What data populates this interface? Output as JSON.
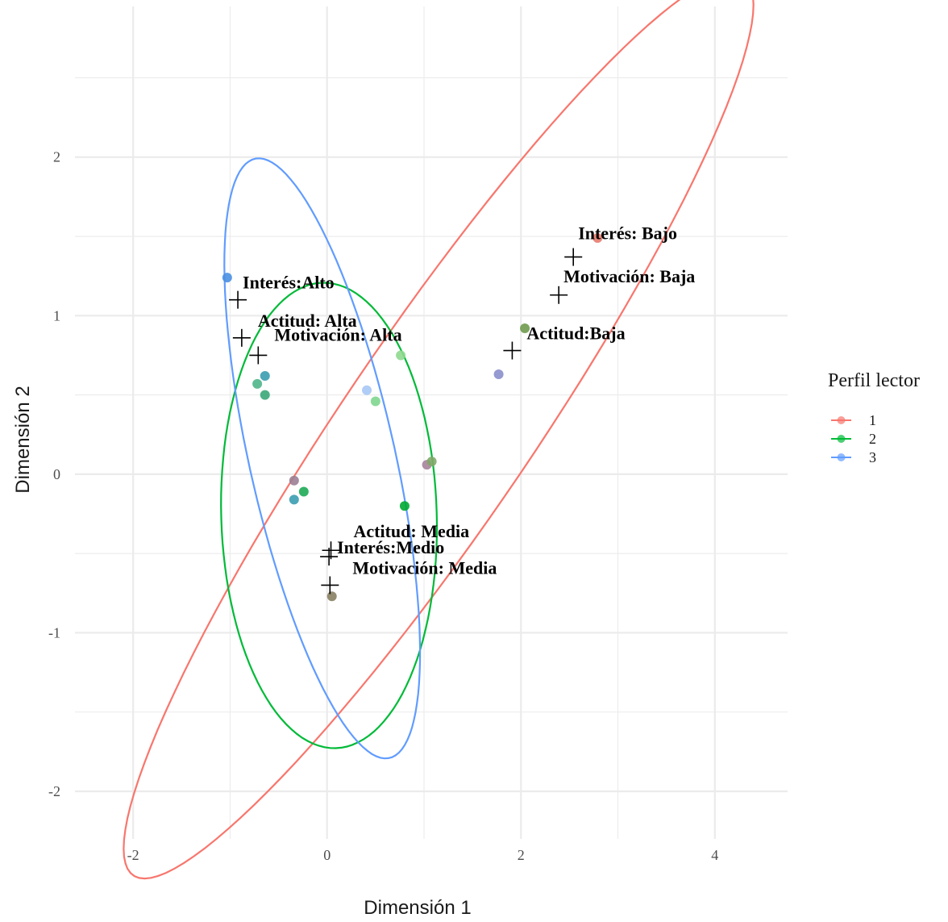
{
  "chart_data": {
    "type": "scatter",
    "xlabel": "Dimensión 1",
    "ylabel": "Dimensión  2",
    "xlim": [
      -2.6,
      4.75
    ],
    "ylim": [
      -2.3,
      2.95
    ],
    "x_ticks": [
      -2,
      0,
      2,
      4
    ],
    "y_ticks": [
      -2,
      -1,
      0,
      1,
      2
    ],
    "grid": true,
    "legend": {
      "title": "Perfil lector",
      "position": "right",
      "entries": [
        {
          "label": "1",
          "color": "#F8766D"
        },
        {
          "label": "2",
          "color": "#00BA38"
        },
        {
          "label": "3",
          "color": "#619CFF"
        }
      ]
    },
    "points": [
      {
        "x": -1.03,
        "y": 1.24,
        "color": "#4A90E2"
      },
      {
        "x": -0.72,
        "y": 0.57,
        "color": "#4FB58A"
      },
      {
        "x": -0.64,
        "y": 0.62,
        "color": "#3A9DB0"
      },
      {
        "x": -0.64,
        "y": 0.5,
        "color": "#3AA878"
      },
      {
        "x": 0.41,
        "y": 0.53,
        "color": "#A6C8F5"
      },
      {
        "x": 0.5,
        "y": 0.46,
        "color": "#7FD68F"
      },
      {
        "x": 0.76,
        "y": 0.75,
        "color": "#8FD98F"
      },
      {
        "x": 1.03,
        "y": 0.06,
        "color": "#A7849C"
      },
      {
        "x": 1.08,
        "y": 0.08,
        "color": "#7FA868"
      },
      {
        "x": -0.34,
        "y": -0.04,
        "color": "#9B7F94"
      },
      {
        "x": -0.34,
        "y": -0.16,
        "color": "#3A9DB0"
      },
      {
        "x": -0.24,
        "y": -0.11,
        "color": "#1EAA55"
      },
      {
        "x": 0.8,
        "y": -0.2,
        "color": "#00AA33"
      },
      {
        "x": 0.05,
        "y": -0.77,
        "color": "#888060"
      },
      {
        "x": 1.77,
        "y": 0.63,
        "color": "#8A8FCC"
      },
      {
        "x": 2.04,
        "y": 0.92,
        "color": "#6E9A4E"
      },
      {
        "x": 2.79,
        "y": 1.49,
        "color": "#E77B6E"
      }
    ],
    "categories": [
      {
        "label": "Interés: Bajo",
        "x": 2.54,
        "y": 1.37
      },
      {
        "label": "Motivación: Baja",
        "x": 2.39,
        "y": 1.13
      },
      {
        "label": "Actitud:Baja",
        "x": 1.91,
        "y": 0.78
      },
      {
        "label": "Interés:Alto",
        "x": -0.92,
        "y": 1.1
      },
      {
        "label": "Actitud: Alta",
        "x": -0.88,
        "y": 0.86
      },
      {
        "label": "Motivación: Alta",
        "x": -0.71,
        "y": 0.75
      },
      {
        "label": "Actitud: Media",
        "x": 0.04,
        "y": -0.48
      },
      {
        "label": "Interés:Medio",
        "x": 0.02,
        "y": -0.52
      },
      {
        "label": "Motivación: Media",
        "x": 0.03,
        "y": -0.7
      }
    ],
    "ellipses": [
      {
        "group": "1",
        "color": "#F8766D",
        "cx": 1.15,
        "cy": 0.3,
        "a": 4.25,
        "b": 0.78,
        "angle_deg": 41
      },
      {
        "group": "2",
        "color": "#00BA38",
        "cx": 0.02,
        "cy": -0.26,
        "a": 1.47,
        "b": 1.11,
        "angle_deg": 95
      },
      {
        "group": "3",
        "color": "#619CFF",
        "cx": -0.05,
        "cy": 0.1,
        "a": 2.02,
        "b": 0.72,
        "angle_deg": 112
      }
    ]
  }
}
